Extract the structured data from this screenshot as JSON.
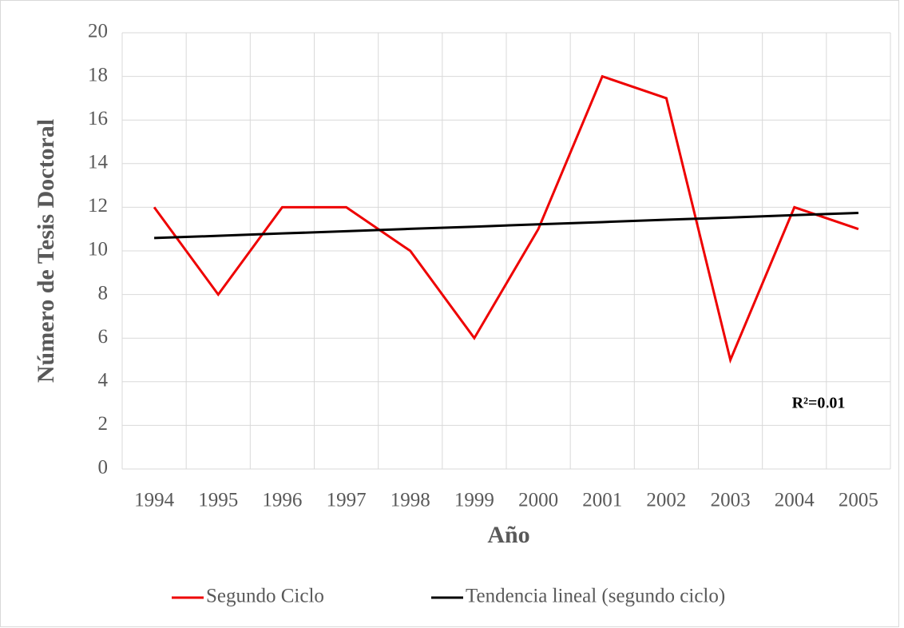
{
  "chart_data": {
    "type": "line",
    "x_label": "Año",
    "y_label": "Número de Tesis Doctoral",
    "categories": [
      "1994",
      "1995",
      "1996",
      "1997",
      "1998",
      "1999",
      "2000",
      "2001",
      "2002",
      "2003",
      "2004",
      "2005"
    ],
    "series": [
      {
        "name": "Segundo Ciclo",
        "color": "#ee0000",
        "values": [
          12,
          8,
          12,
          12,
          10,
          6,
          11,
          18,
          17,
          5,
          12,
          11
        ]
      },
      {
        "name": "Tendencia lineal (segundo ciclo)",
        "color": "#000000",
        "values": [
          10.59,
          10.69,
          10.8,
          10.9,
          11.01,
          11.11,
          11.22,
          11.32,
          11.43,
          11.53,
          11.64,
          11.74
        ]
      }
    ],
    "annotation": "R²=0.01",
    "ylim": [
      0,
      20
    ],
    "yticks": [
      0,
      2,
      4,
      6,
      8,
      10,
      12,
      14,
      16,
      18,
      20
    ],
    "grid": true,
    "legend": "bottom"
  }
}
